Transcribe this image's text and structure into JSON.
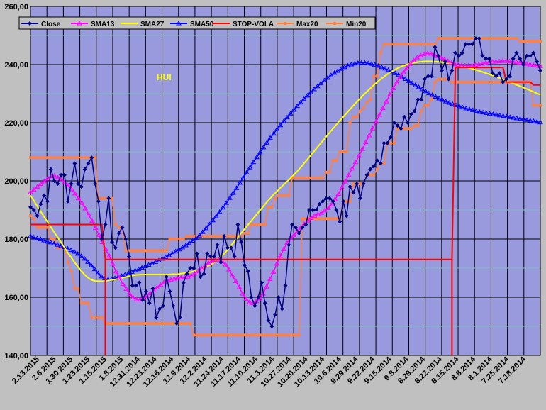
{
  "chart_data": {
    "type": "line",
    "annotation": "HUI",
    "ylim": [
      140,
      260
    ],
    "y_ticks": [
      "140,00",
      "160,00",
      "180,00",
      "200,00",
      "220,00",
      "240,00",
      "260,00"
    ],
    "x_tick_labels": [
      "2.13.2015",
      "2.6.2015",
      "1.30.2015",
      "1.23.2015",
      "1.15.2015",
      "1.8.2015",
      "12.31.2014",
      "12.23.2014",
      "12.16.2014",
      "12.9.2014",
      "12.2.2014",
      "11.24.2014",
      "11.17.2014",
      "11.10.2014",
      "11.3.2014",
      "10.27.2014",
      "10.20.2014",
      "10.13.2014",
      "10.6.2014",
      "9.29.2014",
      "9.22.2014",
      "9.15.2014",
      "9.8.2014",
      "8.29.2014",
      "8.22.2014",
      "8.15.2014",
      "8.8.2014",
      "8.1.2014",
      "7.25.2014",
      "7.18.2014"
    ],
    "grid": true,
    "legend_position": "top-left",
    "series": [
      {
        "name": "Close",
        "color": "#000080",
        "marker": "diamond",
        "values": [
          191,
          190,
          188,
          192,
          195,
          193,
          204,
          200,
          199,
          202,
          202,
          193,
          199,
          206,
          199,
          198,
          204,
          206,
          208,
          199,
          193,
          180,
          185,
          194,
          179,
          177,
          182,
          184,
          180,
          174,
          164,
          164,
          165,
          159,
          162,
          158,
          163,
          153,
          156,
          157,
          167,
          162,
          157,
          151,
          153,
          165,
          168,
          170,
          170,
          175,
          167,
          168,
          175,
          174,
          174,
          178,
          172,
          181,
          177,
          177,
          174,
          185,
          179,
          171,
          169,
          160,
          157,
          160,
          165,
          158,
          152,
          150,
          154,
          160,
          156,
          164,
          178,
          185,
          184,
          182,
          184,
          185,
          190,
          190,
          190,
          192,
          193,
          194,
          194,
          193,
          190,
          186,
          193,
          188,
          198,
          196,
          199,
          194,
          199,
          202,
          204,
          205,
          207,
          206,
          213,
          213,
          215,
          220,
          219,
          218,
          222,
          220,
          223,
          224,
          228,
          228,
          235,
          236,
          236,
          246,
          243,
          238,
          241,
          235,
          238,
          244,
          243,
          244,
          247,
          247,
          247,
          249,
          249,
          243,
          242,
          242,
          237,
          236,
          237,
          234,
          235,
          236,
          242,
          244,
          242,
          240,
          243,
          243,
          244,
          241,
          238
        ]
      },
      {
        "name": "SMA13",
        "color": "#ff00ff",
        "marker": "triangle",
        "values": [
          196,
          196.9,
          197.9,
          198.9,
          199.8,
          200.7,
          201.6,
          201.7,
          201.1,
          200.4,
          199.5,
          198.4,
          197.1,
          195.6,
          194,
          192.4,
          190.5,
          188.4,
          186.2,
          183.8,
          181.4,
          178.9,
          176.5,
          174.2,
          171.5,
          168.8,
          166.7,
          164.5,
          162.8,
          161.1,
          159.9,
          159.2,
          159.2,
          159.7,
          160.4,
          161.4,
          162.3,
          163.3,
          164.2,
          165.1,
          165.7,
          166,
          166.3,
          166.6,
          166.7,
          166.8,
          167,
          167.4,
          168.1,
          169,
          169.9,
          170.8,
          171.7,
          172.4,
          172.8,
          172.8,
          172.3,
          171.2,
          169.5,
          167.4,
          165.5,
          163.4,
          161.2,
          159.4,
          158.2,
          158,
          158.6,
          159.5,
          161.2,
          163.6,
          166.2,
          168.7,
          171.5,
          174.2,
          176.5,
          178.6,
          180.1,
          181.3,
          182.6,
          183.9,
          185.1,
          186.2,
          187.2,
          188,
          188.5,
          189,
          189.8,
          190.6,
          191.9,
          193.6,
          195.5,
          197.7,
          199.8,
          202,
          204.2,
          206.4,
          208.6,
          210.9,
          213.3,
          215.6,
          218,
          220.3,
          222.7,
          225,
          227.3,
          229.6,
          231.8,
          233.8,
          235.6,
          237.3,
          238.8,
          240.2,
          241.4,
          242.4,
          243.1,
          243.6,
          243.8,
          243.7,
          243.4,
          242.9,
          242.4,
          241.8,
          241.2,
          240.6,
          240.1,
          239.9,
          239.7,
          239.6,
          239.6,
          239.7,
          239.9,
          240.1,
          240.3,
          240.5,
          240.7,
          240.9,
          241,
          241.1,
          241.2,
          241.2,
          241.1,
          241,
          240.8,
          240.6,
          240.4,
          240.2,
          240,
          239.8,
          239.6,
          239.4
        ]
      },
      {
        "name": "SMA27",
        "color": "#ffff00",
        "marker": "none",
        "values": [
          195,
          193.2,
          191.3,
          189.5,
          187.7,
          186,
          184.2,
          182.4,
          180.7,
          178.9,
          177.2,
          175.4,
          173.8,
          172.1,
          170.5,
          169.1,
          167.8,
          166.7,
          166,
          165.6,
          165.5,
          165.5,
          165.6,
          165.7,
          165.9,
          166.1,
          166.3,
          166.6,
          166.9,
          167.2,
          167.4,
          167.6,
          167.7,
          167.8,
          167.8,
          167.8,
          167.8,
          167.8,
          167.8,
          167.8,
          167.8,
          167.8,
          167.9,
          167.9,
          168,
          168.2,
          168.3,
          168.5,
          168.8,
          169.1,
          169.4,
          169.9,
          170.4,
          171,
          171.6,
          172.4,
          173.4,
          174.5,
          175.8,
          177.2,
          178.6,
          180.1,
          181.5,
          182.9,
          184.3,
          185.7,
          187.1,
          188.5,
          189.9,
          191.3,
          192.7,
          194,
          195.3,
          196.4,
          197.6,
          198.7,
          199.8,
          200.9,
          202.1,
          203.3,
          204.6,
          206,
          207.4,
          208.8,
          210.2,
          211.6,
          213,
          214.4,
          215.8,
          217.2,
          218.5,
          219.9,
          221.2,
          222.5,
          223.8,
          225.1,
          226.4,
          227.6,
          228.8,
          230,
          231.1,
          232.2,
          233.3,
          234.3,
          235.2,
          236.1,
          236.9,
          237.6,
          238.3,
          238.9,
          239.4,
          239.8,
          240.2,
          240.5,
          240.7,
          240.9,
          241,
          241.1,
          241.1,
          241.1,
          241,
          240.9,
          240.8,
          240.6,
          240.4,
          240.2,
          240,
          239.7,
          239.4,
          239.1,
          238.8,
          238.5,
          238.1,
          237.8,
          237.4,
          237,
          236.6,
          236.2,
          235.8,
          235.3,
          234.9,
          234.4,
          234,
          233.5,
          233,
          232.6,
          232.1,
          231.6,
          231.1,
          230.6,
          230.1,
          229.6
        ]
      },
      {
        "name": "SMA50",
        "color": "#0000ff",
        "marker": "triangle",
        "values": [
          181,
          180.6,
          180.2,
          179.9,
          179.5,
          179.1,
          178.8,
          178.4,
          178,
          177.6,
          177.2,
          176.7,
          176.2,
          175.6,
          174.9,
          174.1,
          173.2,
          172.1,
          170.9,
          169.6,
          168.2,
          167.1,
          166.4,
          166.1,
          166.2,
          166.5,
          166.9,
          167.3,
          167.7,
          168.2,
          168.7,
          169.2,
          169.6,
          170.1,
          170.6,
          171.1,
          171.6,
          172.1,
          172.6,
          173.2,
          173.8,
          174.4,
          175,
          175.7,
          176.4,
          177.1,
          177.8,
          178.6,
          179.4,
          180.2,
          181.2,
          182.4,
          183.7,
          185,
          186.4,
          187.8,
          189.3,
          190.8,
          192.4,
          194.1,
          195.8,
          197.5,
          199.3,
          201.1,
          202.8,
          204.6,
          206.4,
          208.1,
          209.8,
          211.5,
          213.1,
          214.7,
          216.2,
          217.7,
          219.1,
          220.5,
          221.8,
          223.1,
          224.4,
          225.7,
          226.9,
          228.1,
          229.3,
          230.4,
          231.5,
          232.5,
          233.5,
          234.5,
          235.4,
          236.3,
          237.1,
          237.8,
          238.5,
          239.1,
          239.6,
          240,
          240.3,
          240.5,
          240.6,
          240.6,
          240.4,
          240.2,
          239.9,
          239.5,
          239.1,
          238.6,
          238.1,
          237.6,
          237,
          236.4,
          235.7,
          235,
          234.3,
          233.6,
          232.9,
          232.2,
          231.5,
          230.8,
          230.1,
          229.5,
          228.9,
          228.3,
          227.8,
          227.3,
          226.8,
          226.4,
          226,
          225.6,
          225.2,
          224.9,
          224.6,
          224.3,
          224,
          223.7,
          223.5,
          223.3,
          223.1,
          222.9,
          222.7,
          222.5,
          222.3,
          222.1,
          221.9,
          221.7,
          221.5,
          221.3,
          221.1,
          220.9,
          220.7,
          220.5,
          220.3,
          220.1
        ]
      },
      {
        "name": "STOP-VOLA",
        "color": "#ff0000",
        "marker": "none",
        "values": [
          185,
          185,
          185,
          185,
          185,
          185,
          185,
          185,
          185,
          185,
          185,
          185,
          185,
          185,
          185,
          185,
          185,
          185,
          185,
          185,
          185,
          185,
          173,
          173,
          173,
          173,
          173,
          173,
          173,
          173,
          173,
          173,
          173,
          173,
          173,
          173,
          173,
          173,
          173,
          173,
          173,
          173,
          173,
          173,
          173,
          173,
          173,
          173,
          173,
          173,
          173,
          173,
          173,
          173,
          173,
          173,
          173,
          173,
          173,
          173,
          173,
          173,
          173,
          173,
          173,
          173,
          173,
          173,
          173,
          173,
          173,
          173,
          173,
          173,
          173,
          173,
          173,
          173,
          173,
          173,
          173,
          173,
          173,
          173,
          173,
          173,
          173,
          173,
          173,
          173,
          173,
          173,
          173,
          173,
          173,
          173,
          173,
          173,
          173,
          173,
          173,
          173,
          173,
          173,
          173,
          173,
          173,
          173,
          173,
          173,
          173,
          173,
          173,
          173,
          173,
          173,
          173,
          173,
          173,
          173,
          173,
          173,
          173,
          173,
          173,
          239,
          239,
          239,
          239,
          239,
          239,
          239,
          239,
          239,
          239,
          239,
          239,
          239,
          239,
          239,
          234,
          234,
          234,
          234,
          234,
          234,
          234,
          234,
          233,
          233,
          233
        ]
      },
      {
        "name": "Max20",
        "color": "#ff8040",
        "marker": "square",
        "values": [
          208,
          208,
          208,
          208,
          208,
          208,
          208,
          208,
          208,
          208,
          208,
          208,
          208,
          208,
          208,
          208,
          208,
          208,
          208,
          208,
          194,
          194,
          194,
          194,
          194,
          185,
          184,
          184,
          176,
          176,
          176,
          176,
          176,
          176,
          176,
          176,
          176,
          176,
          176,
          176,
          176,
          180,
          180,
          180,
          180,
          180,
          181,
          181,
          181,
          181,
          181,
          181,
          181,
          181,
          181,
          181,
          181,
          181,
          181,
          181,
          181,
          181,
          181,
          182,
          182,
          185,
          185,
          185,
          185,
          185,
          191,
          191,
          194,
          195,
          195,
          195,
          195,
          201,
          201,
          201,
          201,
          201,
          201,
          201,
          201,
          201,
          201,
          203,
          203,
          207,
          207,
          210,
          210,
          210,
          220,
          222,
          222,
          224,
          225,
          227,
          228,
          236,
          236,
          244,
          247,
          247,
          247,
          247,
          247,
          247,
          247,
          247,
          247,
          247,
          247,
          247,
          247,
          247,
          247,
          247,
          249,
          249,
          249,
          249,
          249,
          249,
          249,
          249,
          249,
          249,
          249,
          249,
          249,
          249,
          249,
          249,
          249,
          249,
          249,
          249,
          249,
          249,
          249,
          249,
          248,
          248,
          248,
          248,
          248,
          248,
          248
        ]
      },
      {
        "name": "Min20",
        "color": "#ff8040",
        "marker": "square",
        "values": [
          188,
          187,
          184,
          184,
          184,
          184,
          180,
          180,
          177,
          177,
          177,
          172,
          169,
          163,
          163,
          158,
          158,
          158,
          153,
          153,
          153,
          153,
          151,
          151,
          151,
          151,
          151,
          151,
          151,
          151,
          151,
          151,
          151,
          151,
          151,
          151,
          151,
          151,
          151,
          151,
          151,
          151,
          151,
          151,
          151,
          151,
          151,
          151,
          147,
          147,
          147,
          147,
          147,
          147,
          147,
          147,
          147,
          147,
          147,
          147,
          147,
          147,
          147,
          147,
          147,
          147,
          147,
          147,
          147,
          147,
          147,
          147,
          147,
          147,
          147,
          147,
          147,
          147,
          147,
          147,
          187,
          187,
          187,
          187,
          187,
          187,
          187,
          187,
          187,
          187,
          187,
          187,
          193,
          193,
          193,
          199,
          199,
          199,
          199,
          202,
          202,
          202,
          204,
          206,
          206,
          213,
          213,
          213,
          218,
          218,
          218,
          218,
          218,
          219,
          219,
          224,
          226,
          226,
          228,
          234,
          235,
          235,
          235,
          235,
          234,
          234,
          234,
          234,
          234,
          234,
          234,
          234,
          234,
          234,
          234,
          234,
          234,
          234,
          234,
          234,
          234,
          234,
          234,
          234,
          234,
          234,
          234,
          234,
          226,
          226,
          226
        ]
      }
    ]
  }
}
